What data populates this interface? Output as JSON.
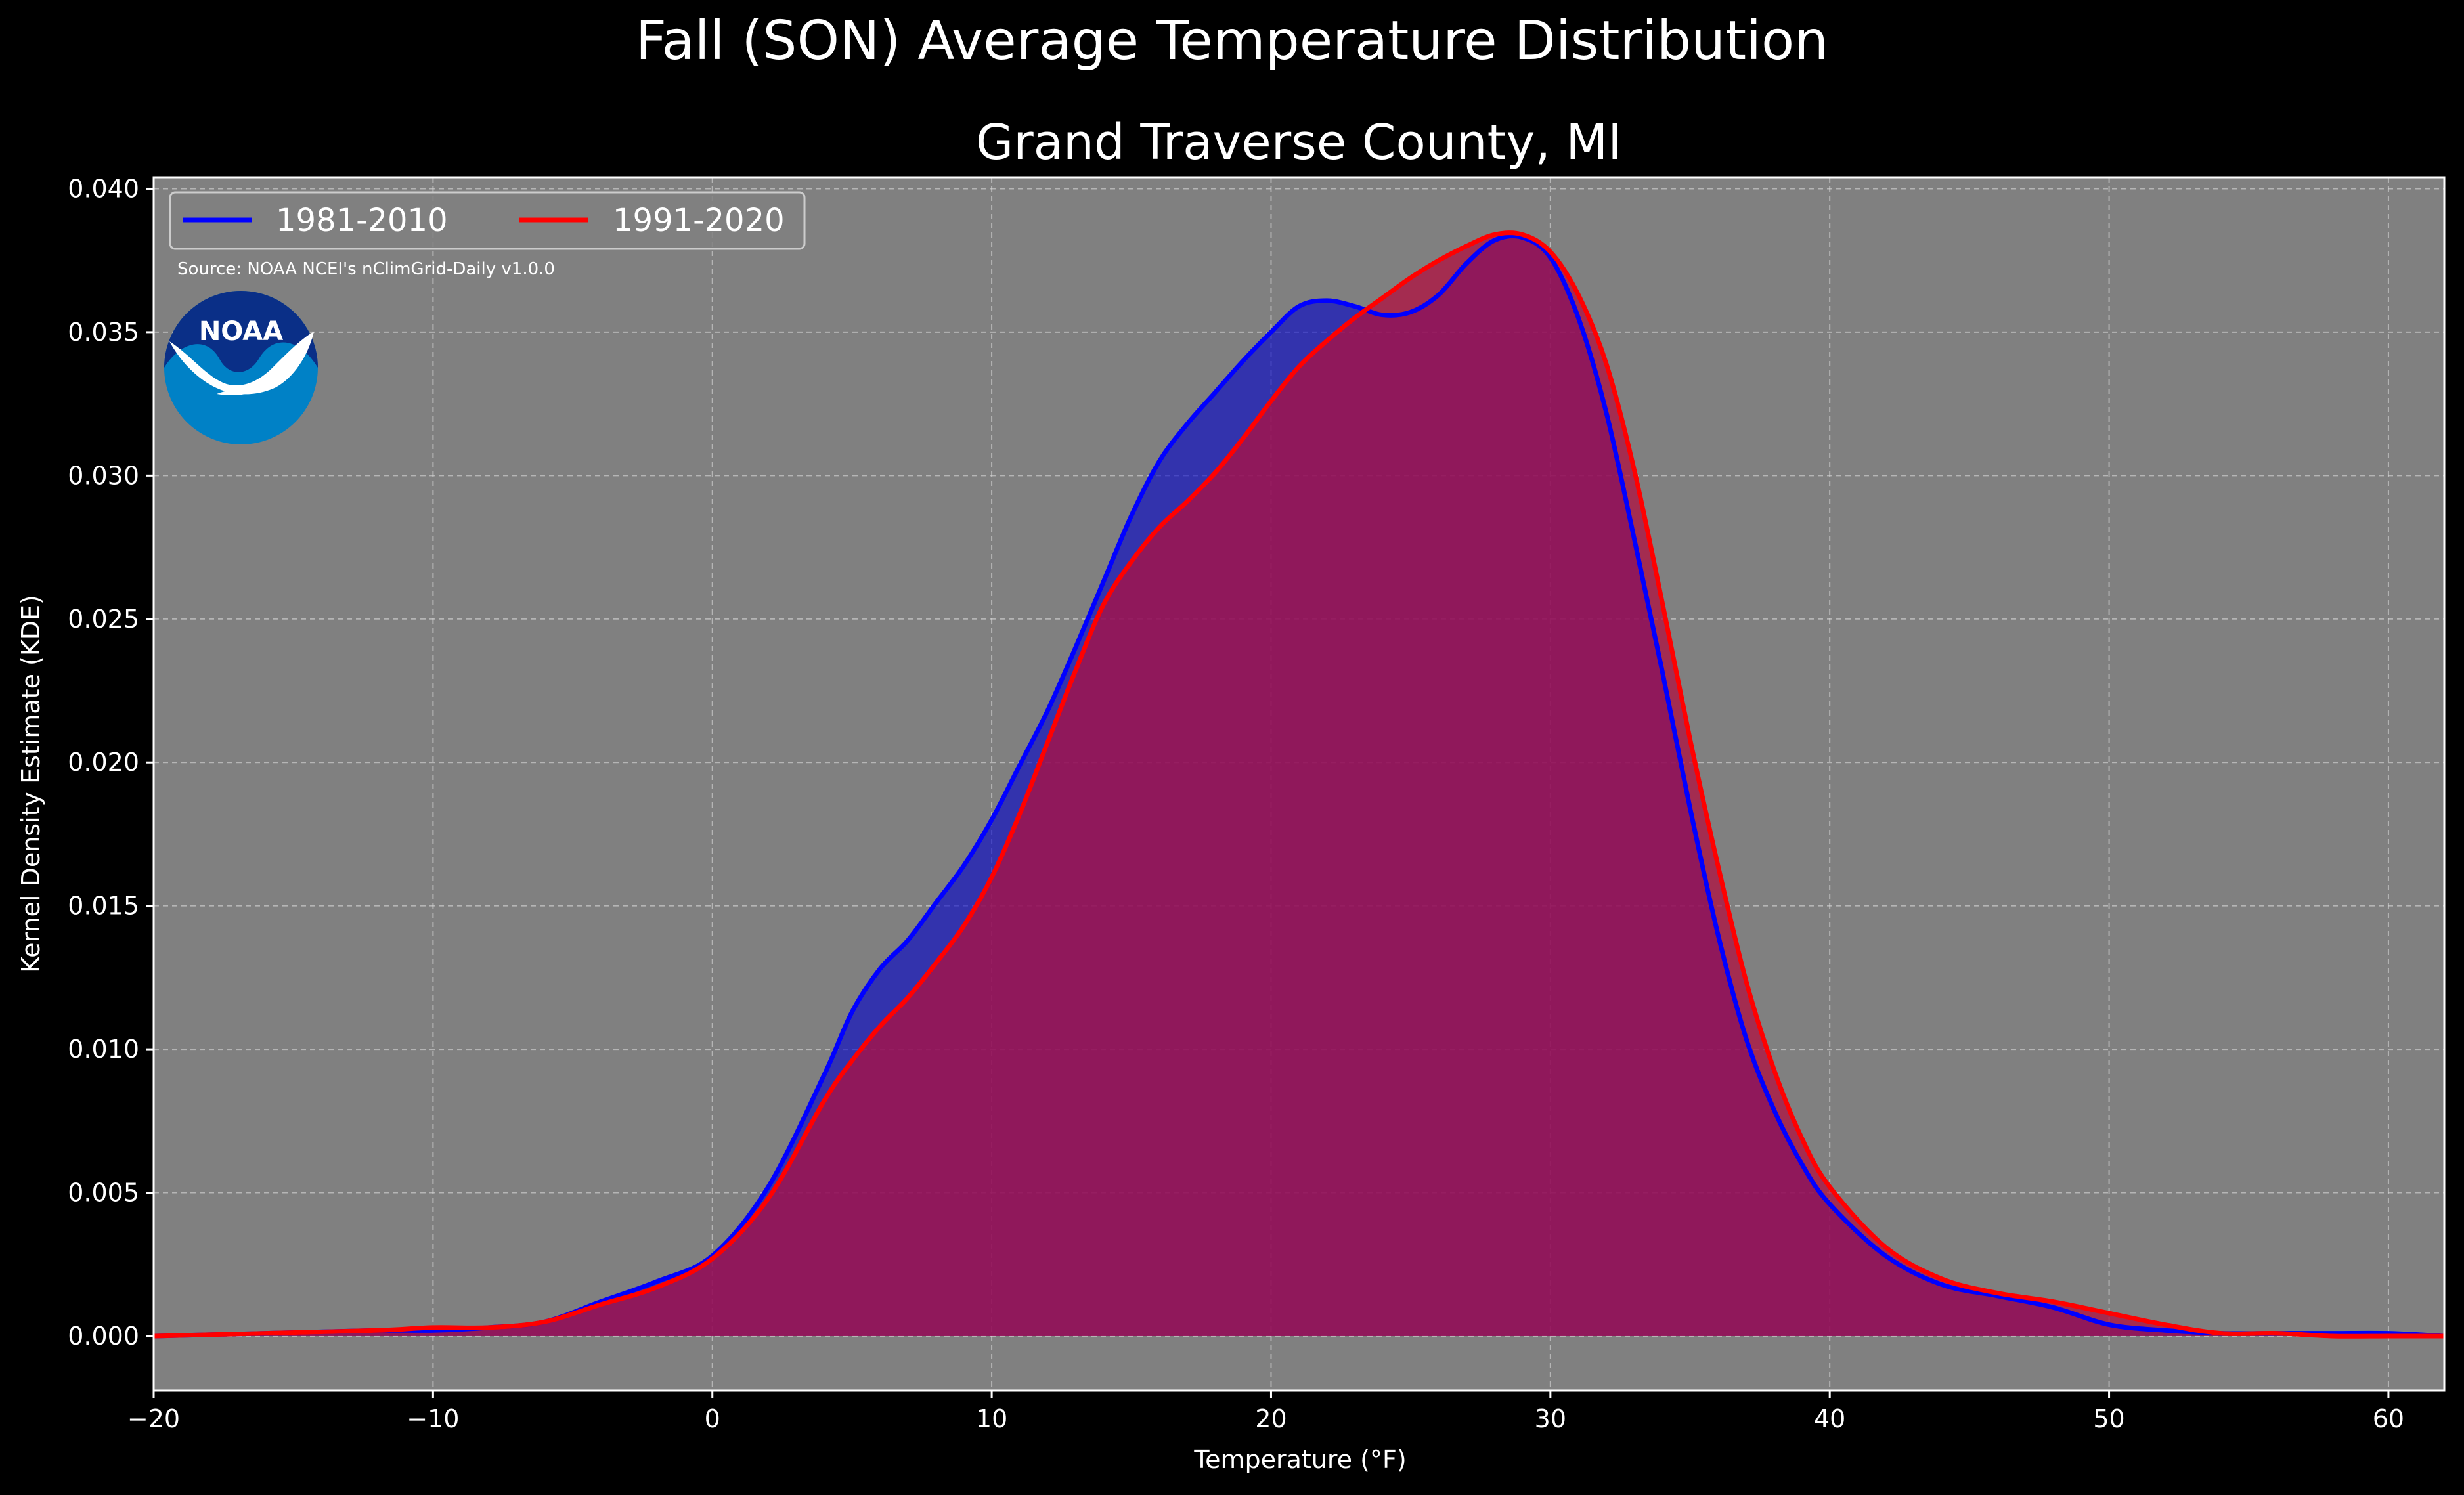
{
  "chart_data": {
    "type": "area",
    "title": "Fall (SON) Average Temperature Distribution",
    "subtitle": "Grand Traverse County, MI",
    "xlabel": "Temperature (°F)",
    "ylabel": "Kernel Density Estimate (KDE)",
    "xlim": [
      -20,
      62
    ],
    "ylim": [
      -0.0019,
      0.0404
    ],
    "xticks": [
      -20,
      -10,
      0,
      10,
      20,
      30,
      40,
      50,
      60
    ],
    "xtick_labels": [
      "−20",
      "−10",
      "0",
      "10",
      "20",
      "30",
      "40",
      "50",
      "60"
    ],
    "yticks": [
      0.0,
      0.005,
      0.01,
      0.015,
      0.02,
      0.025,
      0.03,
      0.035,
      0.04
    ],
    "ytick_labels": [
      "0.000",
      "0.005",
      "0.010",
      "0.015",
      "0.020",
      "0.025",
      "0.030",
      "0.035",
      "0.040"
    ],
    "grid": true,
    "legend_position": "top-left",
    "background_color": "#808080",
    "series": [
      {
        "name": "1981-2010",
        "color": "#0000ff",
        "fill": "#0000cc",
        "x": [
          -20,
          -16,
          -12,
          -10,
          -8,
          -6,
          -4,
          -2,
          0,
          2,
          4,
          5,
          6,
          7,
          8,
          9,
          10,
          11,
          12,
          13,
          14,
          15,
          16,
          17,
          18,
          19,
          20,
          21,
          22,
          23,
          24,
          25,
          26,
          27,
          28,
          29,
          30,
          31,
          32,
          33,
          34,
          35,
          36,
          37,
          38,
          39,
          40,
          42,
          44,
          46,
          48,
          50,
          52,
          54,
          56,
          58,
          60,
          62
        ],
        "y": [
          0.0,
          0.0001,
          0.0002,
          0.0002,
          0.0003,
          0.0005,
          0.0012,
          0.0019,
          0.0028,
          0.0052,
          0.0091,
          0.0113,
          0.0128,
          0.0138,
          0.0151,
          0.0164,
          0.018,
          0.0199,
          0.0218,
          0.024,
          0.0263,
          0.0286,
          0.0305,
          0.0318,
          0.0329,
          0.034,
          0.035,
          0.0359,
          0.0361,
          0.0359,
          0.0356,
          0.0357,
          0.0363,
          0.0374,
          0.0382,
          0.0383,
          0.0376,
          0.0355,
          0.0322,
          0.0278,
          0.0232,
          0.0184,
          0.014,
          0.0104,
          0.0079,
          0.006,
          0.0046,
          0.0028,
          0.0018,
          0.0014,
          0.001,
          0.0004,
          0.0002,
          0.0001,
          0.0001,
          0.0001,
          0.0001,
          0.0
        ]
      },
      {
        "name": "1991-2020",
        "color": "#ff0000",
        "fill": "#b01040",
        "x": [
          -20,
          -16,
          -12,
          -10,
          -8,
          -6,
          -4,
          -2,
          0,
          2,
          4,
          5,
          6,
          7,
          8,
          9,
          10,
          11,
          12,
          13,
          14,
          15,
          16,
          17,
          18,
          19,
          20,
          21,
          22,
          23,
          24,
          25,
          26,
          27,
          28,
          29,
          30,
          31,
          32,
          33,
          34,
          35,
          36,
          37,
          38,
          39,
          40,
          42,
          44,
          46,
          48,
          50,
          52,
          54,
          56,
          58,
          60,
          62
        ],
        "y": [
          0.0,
          0.0001,
          0.0002,
          0.0003,
          0.0003,
          0.0005,
          0.0011,
          0.0017,
          0.0027,
          0.0048,
          0.0082,
          0.0096,
          0.0108,
          0.0118,
          0.013,
          0.0143,
          0.016,
          0.0182,
          0.0207,
          0.0232,
          0.0255,
          0.027,
          0.0282,
          0.0291,
          0.0301,
          0.0313,
          0.0326,
          0.0338,
          0.0347,
          0.0355,
          0.0362,
          0.0369,
          0.0375,
          0.038,
          0.0384,
          0.0384,
          0.0378,
          0.0363,
          0.0339,
          0.0302,
          0.0256,
          0.0208,
          0.0164,
          0.0124,
          0.0093,
          0.0069,
          0.0052,
          0.0031,
          0.002,
          0.0015,
          0.0012,
          0.0008,
          0.0004,
          0.0001,
          0.0001,
          0.0,
          0.0,
          0.0
        ]
      }
    ],
    "annotations": [
      "Source: NOAA NCEI's nClimGrid-Daily v1.0.0"
    ],
    "logo": {
      "text": "NOAA",
      "outer_color": "#0081c6",
      "inner_color": "#0a2f87"
    }
  }
}
